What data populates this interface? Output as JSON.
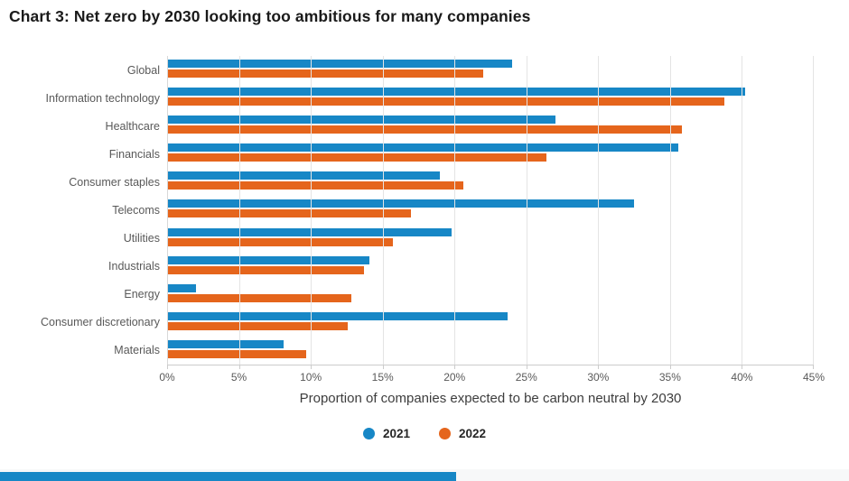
{
  "title": "Chart 3: Net zero by 2030 looking too ambitious for many companies",
  "chart_data": {
    "type": "bar",
    "orientation": "horizontal",
    "title": "Chart 3: Net zero by 2030 looking too ambitious for many companies",
    "xlabel": "Proportion of companies expected to be carbon neutral by 2030",
    "ylabel": "",
    "xlim": [
      0,
      45
    ],
    "x_tick_labels": [
      "0%",
      "5%",
      "10%",
      "15%",
      "20%",
      "25%",
      "30%",
      "35%",
      "40%",
      "45%"
    ],
    "grid": "vertical",
    "legend_position": "bottom",
    "categories": [
      "Global",
      "Information technology",
      "Healthcare",
      "Financials",
      "Consumer staples",
      "Telecoms",
      "Utilities",
      "Industrials",
      "Energy",
      "Consumer discretionary",
      "Materials"
    ],
    "series": [
      {
        "name": "2021",
        "color": "#1787c6",
        "values": [
          24,
          40.2,
          27,
          35.6,
          19,
          32.5,
          19.8,
          14.1,
          2,
          23.7,
          8.1
        ]
      },
      {
        "name": "2022",
        "color": "#e5651c",
        "values": [
          22,
          38.8,
          35.8,
          26.4,
          20.6,
          17,
          15.7,
          13.7,
          12.8,
          12.6,
          9.7
        ]
      }
    ]
  },
  "legend": {
    "items": [
      {
        "label": "2021",
        "color": "#1787c6"
      },
      {
        "label": "2022",
        "color": "#e5651c"
      }
    ]
  },
  "colors": {
    "series_2021": "#1787c6",
    "series_2022": "#e5651c",
    "footer_accent": "#1787c6"
  }
}
